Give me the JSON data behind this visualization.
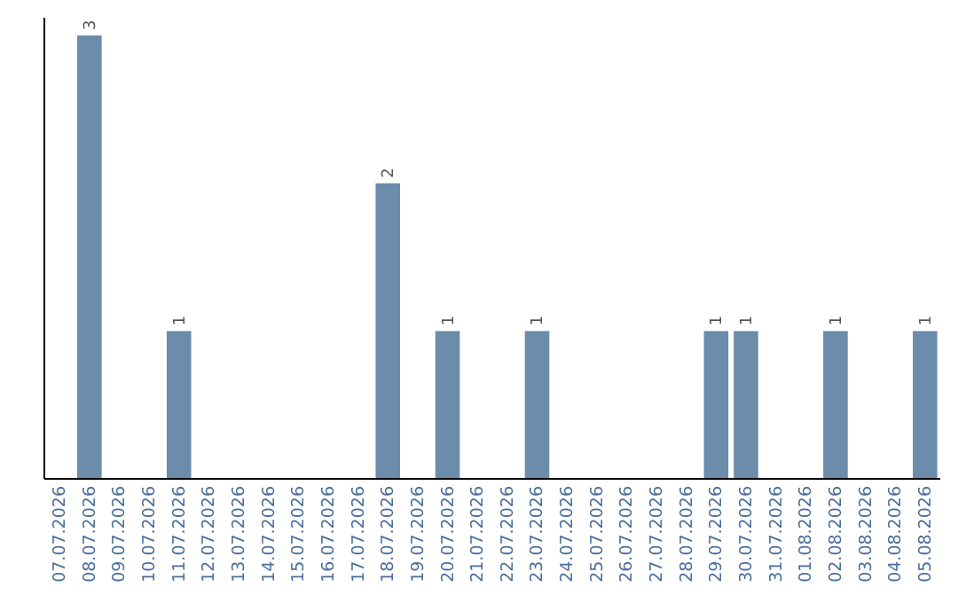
{
  "chart_data": {
    "type": "bar",
    "categories": [
      "07.07.2026",
      "08.07.2026",
      "09.07.2026",
      "10.07.2026",
      "11.07.2026",
      "12.07.2026",
      "13.07.2026",
      "14.07.2026",
      "15.07.2026",
      "16.07.2026",
      "17.07.2026",
      "18.07.2026",
      "19.07.2026",
      "20.07.2026",
      "21.07.2026",
      "22.07.2026",
      "23.07.2026",
      "24.07.2026",
      "25.07.2026",
      "26.07.2026",
      "27.07.2026",
      "28.07.2026",
      "29.07.2026",
      "30.07.2026",
      "31.07.2026",
      "01.08.2026",
      "02.08.2026",
      "03.08.2026",
      "04.08.2026",
      "05.08.2026"
    ],
    "values": [
      0,
      3,
      0,
      0,
      1,
      0,
      0,
      0,
      0,
      0,
      0,
      2,
      0,
      1,
      0,
      0,
      1,
      0,
      0,
      0,
      0,
      0,
      1,
      1,
      0,
      0,
      1,
      0,
      0,
      1
    ],
    "value_labels": [
      null,
      "3",
      null,
      null,
      "1",
      null,
      null,
      null,
      null,
      null,
      null,
      "2",
      null,
      "1",
      null,
      null,
      "1",
      null,
      null,
      null,
      null,
      null,
      "1",
      "1",
      null,
      null,
      "1",
      null,
      null,
      "1"
    ],
    "color": "#6b8cab"
  }
}
